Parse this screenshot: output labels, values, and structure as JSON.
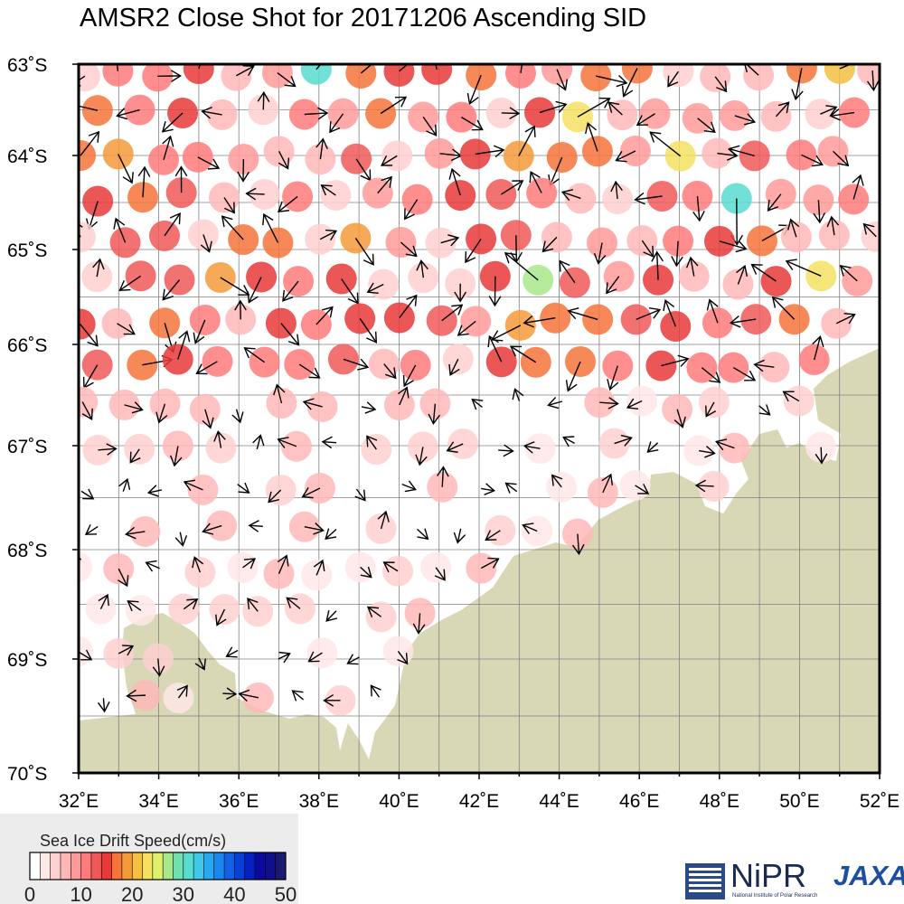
{
  "title": "AMSR2 Close Shot for 20171206 Ascending SID",
  "map": {
    "lon_min": 32,
    "lon_max": 52,
    "lat_min": -70,
    "lat_max": -63,
    "lon_labels": [
      "32˚E",
      "34˚E",
      "36˚E",
      "38˚E",
      "40˚E",
      "42˚E",
      "44˚E",
      "46˚E",
      "48˚E",
      "50˚E",
      "52˚E"
    ],
    "lat_labels": [
      "63˚S",
      "64˚S",
      "65˚S",
      "66˚S",
      "67˚S",
      "68˚S",
      "69˚S",
      "70˚S"
    ],
    "land_color": "#d8d8b6",
    "grid_color": "#808080"
  },
  "legend": {
    "title": "Sea Ice Drift Speed(cm/s)",
    "ticks": [
      "0",
      "10",
      "20",
      "30",
      "40",
      "50"
    ],
    "colors": [
      "#ffffff",
      "#ffe8e8",
      "#ffd0d0",
      "#ffb8b8",
      "#ff9a9a",
      "#ff7b7b",
      "#f05858",
      "#e83838",
      "#f5743a",
      "#f59a3a",
      "#f5c040",
      "#f5e060",
      "#dff06a",
      "#a8e88a",
      "#70e0b0",
      "#58dcd0",
      "#40c8e8",
      "#2aa8f0",
      "#1888f0",
      "#1060e8",
      "#0840d8",
      "#0520c0",
      "#0a0aa0",
      "#10108a",
      "#1a1a70"
    ]
  },
  "logos": {
    "nipr": "NiPR",
    "nipr_sub": "National Institute of Polar Research",
    "jaxa": "JAXA"
  }
}
